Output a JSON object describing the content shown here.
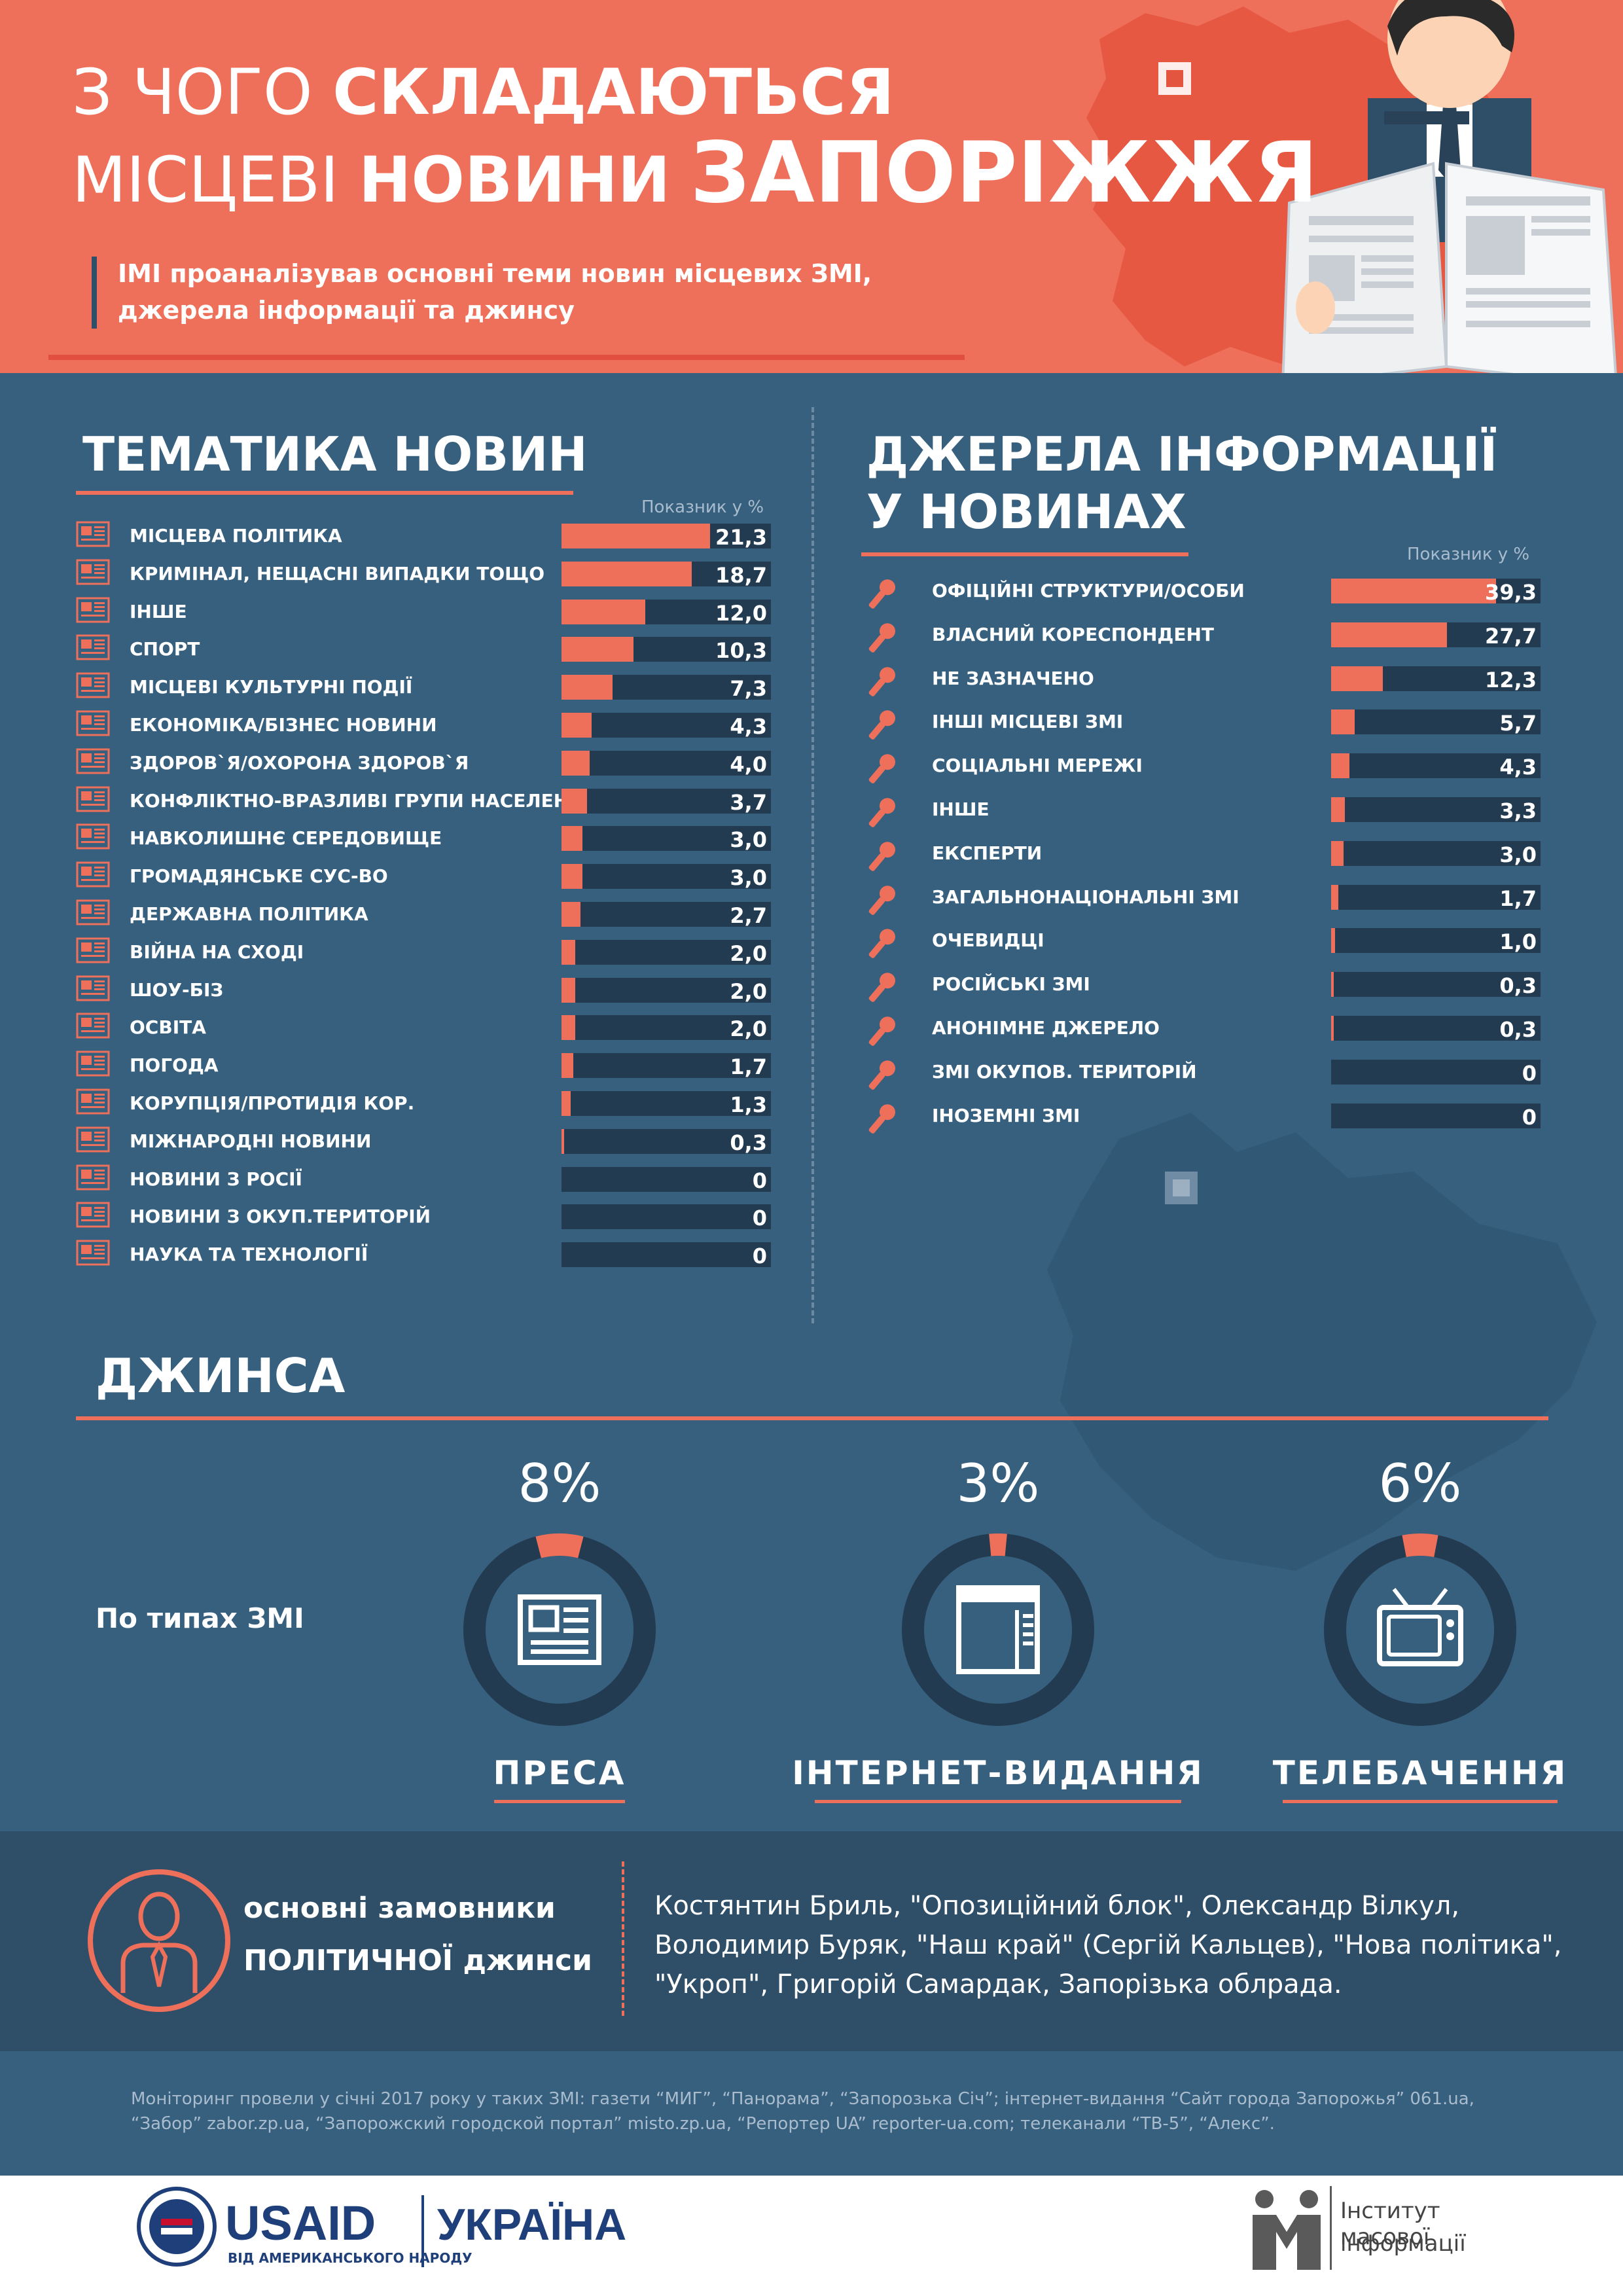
{
  "header": {
    "title_l1_thin": "З ЧОГО",
    "title_l1_bold": "СКЛАДАЮТЬСЯ",
    "title_l2_thin": "МІСЦЕВІ",
    "title_l2_bold": "НОВИНИ",
    "title_l2_big": "ЗАПОРІЖЖЯ",
    "subtitle_l1": "ІМІ проаналізував основні теми новин місцевих ЗМІ,",
    "subtitle_l2": "джерела інформації та джинсу"
  },
  "topics": {
    "title": "ТЕМАТИКА НОВИН",
    "note": "Показник у %"
  },
  "sources": {
    "title_l1": "ДЖЕРЕЛА ІНФОРМАЦІЇ",
    "title_l2": "У НОВИНАХ",
    "note": "Показник у %"
  },
  "chart_data": [
    {
      "type": "bar",
      "title": "ТЕМАТИКА НОВИН",
      "ylabel": "Показник у %",
      "xlim": [
        0,
        30
      ],
      "categories": [
        {
          "label": "МІСЦЕВА ПОЛІТИКА",
          "value": 21.3,
          "text": "21,3"
        },
        {
          "label": "КРИМІНАЛ, НЕЩАСНІ ВИПАДКИ ТОЩО",
          "value": 18.7,
          "text": "18,7"
        },
        {
          "label": "ІНШЕ",
          "value": 12.0,
          "text": "12,0"
        },
        {
          "label": "СПОРТ",
          "value": 10.3,
          "text": "10,3"
        },
        {
          "label": "МІСЦЕВІ КУЛЬТУРНІ ПОДІЇ",
          "value": 7.3,
          "text": "7,3"
        },
        {
          "label": "ЕКОНОМІКА/БІЗНЕС НОВИНИ",
          "value": 4.3,
          "text": "4,3"
        },
        {
          "label": "ЗДОРОВ`Я/ОХОРОНА ЗДОРОВ`Я",
          "value": 4.0,
          "text": "4,0"
        },
        {
          "label": "КОНФЛІКТНО-ВРАЗЛИВІ ГРУПИ НАСЕЛЕННЯ",
          "value": 3.7,
          "text": "3,7"
        },
        {
          "label": "НАВКОЛИШНЄ СЕРЕДОВИЩЕ",
          "value": 3.0,
          "text": "3,0"
        },
        {
          "label": "ГРОМАДЯНСЬКЕ СУС-ВО",
          "value": 3.0,
          "text": "3,0"
        },
        {
          "label": "ДЕРЖАВНА ПОЛІТИКА",
          "value": 2.7,
          "text": "2,7"
        },
        {
          "label": "ВІЙНА НА СХОДІ",
          "value": 2.0,
          "text": "2,0"
        },
        {
          "label": "ШОУ-БІЗ",
          "value": 2.0,
          "text": "2,0"
        },
        {
          "label": "ОСВІТА",
          "value": 2.0,
          "text": "2,0"
        },
        {
          "label": "ПОГОДА",
          "value": 1.7,
          "text": "1,7"
        },
        {
          "label": "КОРУПЦІЯ/ПРОТИДІЯ КОР.",
          "value": 1.3,
          "text": "1,3"
        },
        {
          "label": "МІЖНАРОДНІ НОВИНИ",
          "value": 0.3,
          "text": "0,3"
        },
        {
          "label": "НОВИНИ З РОСІЇ",
          "value": 0,
          "text": "0"
        },
        {
          "label": "НОВИНИ З ОКУП.ТЕРИТОРІЙ",
          "value": 0,
          "text": "0"
        },
        {
          "label": "НАУКА ТА ТЕХНОЛОГІЇ",
          "value": 0,
          "text": "0"
        }
      ]
    },
    {
      "type": "bar",
      "title": "ДЖЕРЕЛА ІНФОРМАЦІЇ У НОВИНАХ",
      "ylabel": "Показник у %",
      "xlim": [
        0,
        50
      ],
      "categories": [
        {
          "label": "ОФІЦІЙНІ СТРУКТУРИ/ОСОБИ",
          "value": 39.3,
          "text": "39,3"
        },
        {
          "label": "ВЛАСНИЙ КОРЕСПОНДЕНТ",
          "value": 27.7,
          "text": "27,7"
        },
        {
          "label": "НЕ ЗАЗНАЧЕНО",
          "value": 12.3,
          "text": "12,3"
        },
        {
          "label": "ІНШІ МІСЦЕВІ ЗМІ",
          "value": 5.7,
          "text": "5,7"
        },
        {
          "label": "СОЦІАЛЬНІ МЕРЕЖІ",
          "value": 4.3,
          "text": "4,3"
        },
        {
          "label": "ІНШЕ",
          "value": 3.3,
          "text": "3,3"
        },
        {
          "label": "ЕКСПЕРТИ",
          "value": 3.0,
          "text": "3,0"
        },
        {
          "label": "ЗАГАЛЬНОНАЦІОНАЛЬНІ ЗМІ",
          "value": 1.7,
          "text": "1,7"
        },
        {
          "label": "ОЧЕВИДЦІ",
          "value": 1.0,
          "text": "1,0"
        },
        {
          "label": "РОСІЙСЬКІ ЗМІ",
          "value": 0.3,
          "text": "0,3"
        },
        {
          "label": "АНОНІМНЕ ДЖЕРЕЛО",
          "value": 0.3,
          "text": "0,3"
        },
        {
          "label": "ЗМІ ОКУПОВ. ТЕРИТОРІЙ",
          "value": 0,
          "text": "0"
        },
        {
          "label": "ІНОЗЕМНІ ЗМІ",
          "value": 0,
          "text": "0"
        }
      ]
    },
    {
      "type": "pie",
      "title": "ДЖИНСА",
      "categories": [
        {
          "label": "ПРЕСА",
          "value": 8,
          "text": "8%",
          "icon": "newspaper-icon"
        },
        {
          "label": "ІНТЕРНЕТ-ВИДАННЯ",
          "value": 3,
          "text": "3%",
          "icon": "browser-window-icon"
        },
        {
          "label": "ТЕЛЕБАЧЕННЯ",
          "value": 6,
          "text": "6%",
          "icon": "tv-icon"
        }
      ]
    }
  ],
  "jeans": {
    "title": "ДЖИНСА",
    "by_type_label": "По типах ЗМІ"
  },
  "customers": {
    "label_l1": "основні замовники",
    "label_l2": "ПОЛІТИЧНОЇ джинси",
    "text_l1": "Костянтин Бриль, \"Опозиційний блок\", Олександр Вілкул,",
    "text_l2": "Володимир Буряк, \"Наш край\" (Сергій Кальцев), \"Нова політика\",",
    "text_l3": "\"Укроп\", Григорій Самардак, Запорізька облрада."
  },
  "footnote": {
    "l1": "Моніторинг провели у січні 2017 року у таких ЗМІ: газети “МИГ”, “Панорама”, “Запорозька Січ”; інтернет-видання “Сайт города Запорожья” 061.ua,",
    "l2": "“Забор” zabor.zp.ua, “Запорожский городской портал” misto.zp.ua, “Репортер UA” reporter-ua.com; телеканали “ТВ-5”, “Алекс”."
  },
  "logos": {
    "usaid": "USAID",
    "usaid_sub": "ВІД АМЕРИКАНСЬКОГО НАРОДУ",
    "ukraine": "УКРАЇНА",
    "imi_l1": "Інститут масової",
    "imi_l2": "інформації"
  },
  "colors": {
    "accent": "#ef705a",
    "background": "#37607f",
    "track": "#223b51",
    "dark_band": "#2f4f69"
  }
}
